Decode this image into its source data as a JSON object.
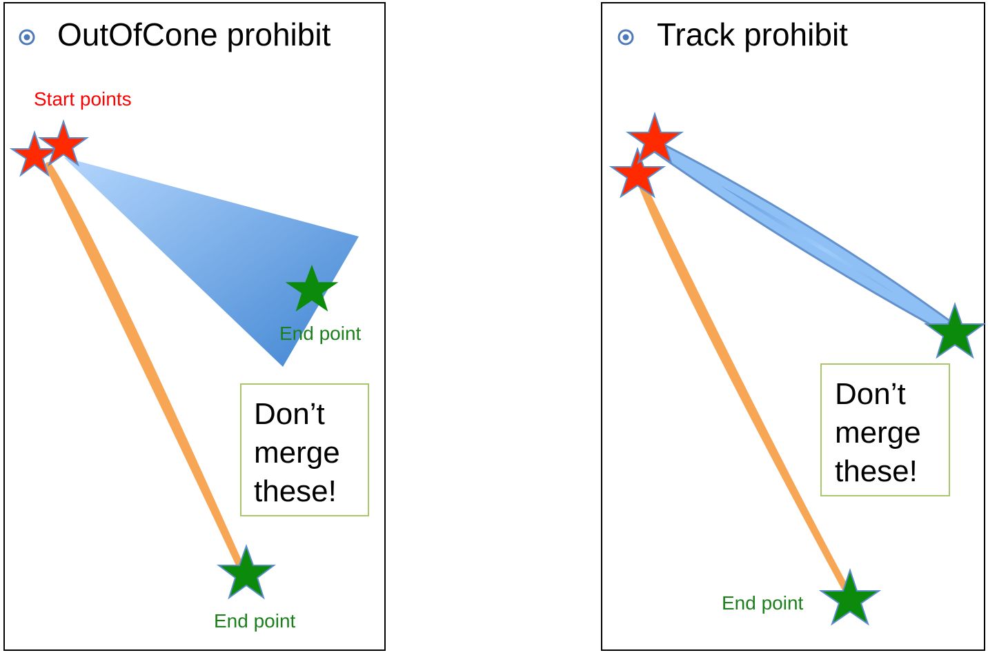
{
  "colors": {
    "frame": "#000000",
    "start_star": "#ff2a00",
    "end_star": "#0b8a0b",
    "star_outline": "#5b8cc9",
    "cone_light": "#a9cffb",
    "cone_dark": "#4f8fd6",
    "track_orange": "#f7a655",
    "note_border": "#a9c76a",
    "start_label": "#ff0000",
    "end_label": "#1b7f1b",
    "bullet": "#4e79b8"
  },
  "icons": [
    "bullet-icon",
    "start-star-icon",
    "end-star-icon"
  ],
  "left_panel": {
    "title": "OutOfCone prohibit",
    "start_label": "Start points",
    "end_label_cone": "End point",
    "end_label_track": "End point",
    "note": [
      "Don’t",
      "merge",
      "these!"
    ]
  },
  "right_panel": {
    "title": "Track prohibit",
    "end_label": "End point",
    "note": [
      "Don’t",
      "merge",
      "these!"
    ]
  }
}
